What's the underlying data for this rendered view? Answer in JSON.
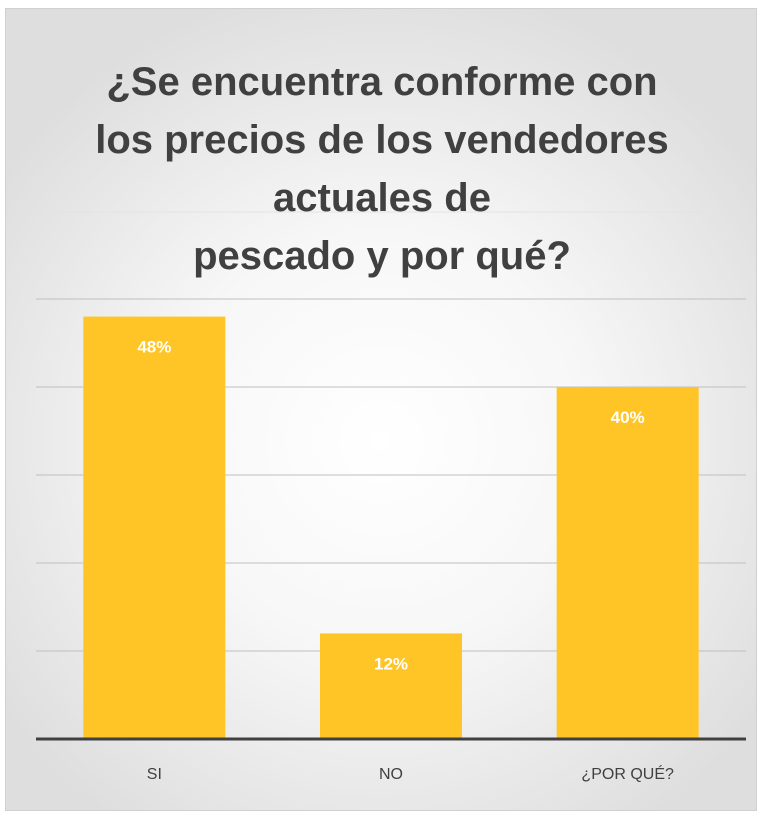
{
  "chart_data": {
    "type": "bar",
    "title_lines": [
      "¿Se encuentra conforme con",
      "los precios de los vendedores",
      "actuales de",
      "pescado y por qué?"
    ],
    "categories": [
      "SI",
      "NO",
      "¿POR QUÉ?"
    ],
    "values": [
      48,
      12,
      40
    ],
    "data_labels": [
      "48%",
      "12%",
      "40%"
    ],
    "ylim": [
      0,
      50
    ],
    "y_unit": "%",
    "grid": true,
    "legend": "none",
    "colors": {
      "bar": "#FFC425",
      "data_label": "#FFFFFF",
      "gridline": "#BFBFBF",
      "axis": "#404040",
      "tick_label": "#404040",
      "title": "#404040"
    }
  }
}
